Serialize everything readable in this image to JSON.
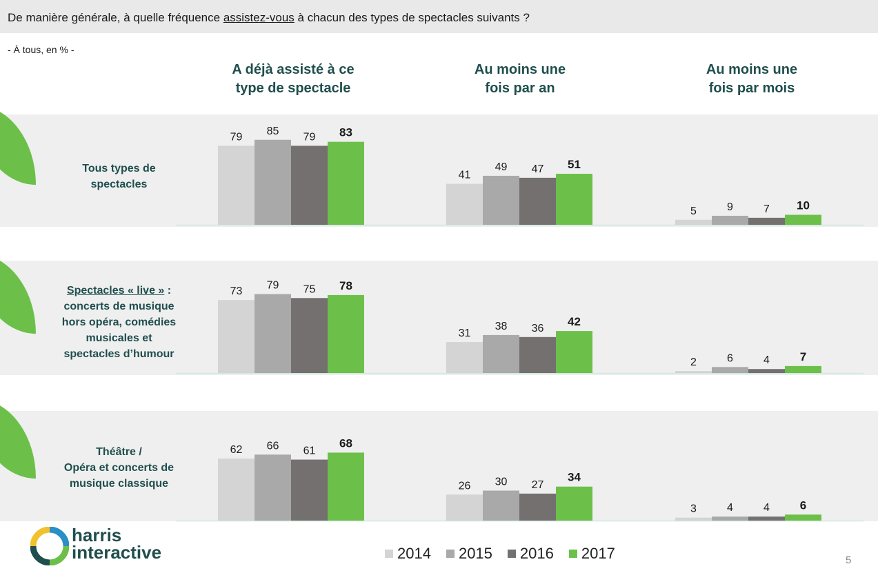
{
  "question": {
    "before": "De manière générale, à quelle fréquence ",
    "underlined": "assistez-vous",
    "after": " à chacun des types de spectacles suivants ?"
  },
  "base": "- À tous, en % -",
  "column_headers": [
    {
      "line1": "A déjà assisté à ce",
      "line2": "type de spectacle"
    },
    {
      "line1": "Au moins une",
      "line2": "fois par an"
    },
    {
      "line1": "Au moins une",
      "line2": "fois par mois"
    }
  ],
  "row_labels": [
    {
      "lines": [
        "Tous types de",
        "spectacles"
      ]
    },
    {
      "underlined": "Spectacles « live »",
      "suffix": " :",
      "lines": [
        "concerts de musique",
        "hors opéra, comédies",
        "musicales et",
        "spectacles d’humour"
      ]
    },
    {
      "lines": [
        "Théâtre /",
        "Opéra et concerts de",
        "musique classique"
      ]
    }
  ],
  "legend": [
    "2014",
    "2015",
    "2016",
    "2017"
  ],
  "colors": {
    "2014": "#d4d4d4",
    "2015": "#a9a9a9",
    "2016": "#747070",
    "2017": "#6cc04a",
    "heading": "#1f4e4d",
    "band": "#efefef"
  },
  "logo": {
    "line1": "harris",
    "line2": "interactive"
  },
  "page_number": "5",
  "chart_data": {
    "type": "bar",
    "series_names": [
      "2014",
      "2015",
      "2016",
      "2017"
    ],
    "groups": [
      {
        "values": [
          [
            79,
            85,
            79,
            83
          ],
          [
            41,
            49,
            47,
            51
          ],
          [
            5,
            9,
            7,
            10
          ]
        ]
      },
      {
        "values": [
          [
            73,
            79,
            75,
            78
          ],
          [
            31,
            38,
            36,
            42
          ],
          [
            2,
            6,
            4,
            7
          ]
        ]
      },
      {
        "values": [
          [
            62,
            66,
            61,
            68
          ],
          [
            26,
            30,
            27,
            34
          ],
          [
            3,
            4,
            4,
            6
          ]
        ]
      }
    ],
    "highlight_series": "2017",
    "ylim": [
      0,
      100
    ]
  }
}
